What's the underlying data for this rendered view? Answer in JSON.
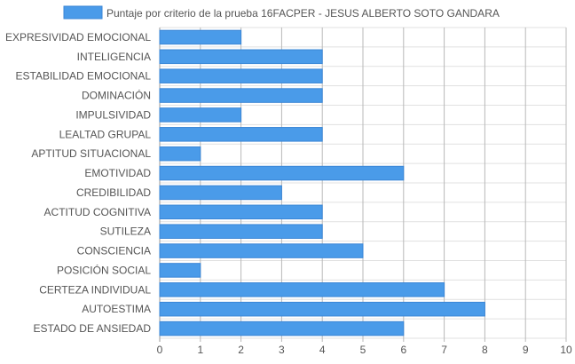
{
  "chart_data": {
    "type": "bar",
    "orientation": "horizontal",
    "legend": {
      "position": "top",
      "entries": [
        "Puntaje por criterio de la prueba 16FACPER - JESUS ALBERTO SOTO GANDARA"
      ]
    },
    "categories": [
      "EXPRESIVIDAD EMOCIONAL",
      "INTELIGENCIA",
      "ESTABILIDAD EMOCIONAL",
      "DOMINACIÓN",
      "IMPULSIVIDAD",
      "LEALTAD GRUPAL",
      "APTITUD SITUACIONAL",
      "EMOTIVIDAD",
      "CREDIBILIDAD",
      "ACTITUD COGNITIVA",
      "SUTILEZA",
      "CONSCIENCIA",
      "POSICIÓN SOCIAL",
      "CERTEZA INDIVIDUAL",
      "AUTOESTIMA",
      "ESTADO DE ANSIEDAD"
    ],
    "series": [
      {
        "name": "Puntaje por criterio de la prueba 16FACPER - JESUS ALBERTO SOTO GANDARA",
        "values": [
          2,
          4,
          4,
          4,
          2,
          4,
          1,
          6,
          3,
          4,
          4,
          5,
          1,
          7,
          8,
          6
        ],
        "color": "#4a9be9",
        "border_color": "#3a86d6"
      }
    ],
    "xlim": [
      0,
      10
    ],
    "x_ticks": [
      "0",
      "1",
      "2",
      "3",
      "4",
      "5",
      "6",
      "7",
      "8",
      "9",
      "10"
    ],
    "grid": true
  }
}
